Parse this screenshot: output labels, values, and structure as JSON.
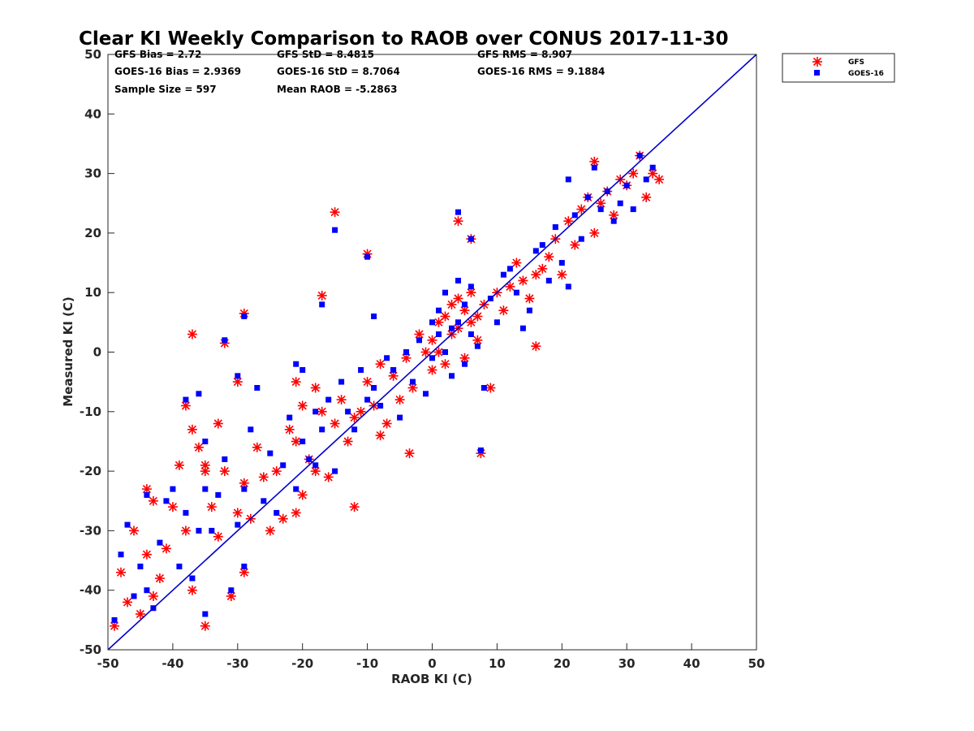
{
  "chart_data": {
    "type": "scatter",
    "title": "Clear KI Weekly Comparison to RAOB over CONUS 2017-11-30",
    "xlabel": "RAOB KI (C)",
    "ylabel": "Measured KI (C)",
    "xlim": [
      -50,
      50
    ],
    "ylim": [
      -50,
      50
    ],
    "xticks": [
      "-50",
      "-40",
      "-30",
      "-20",
      "-10",
      "0",
      "10",
      "20",
      "30",
      "40",
      "50"
    ],
    "yticks": [
      "-50",
      "-40",
      "-30",
      "-20",
      "-10",
      "0",
      "10",
      "20",
      "30",
      "40",
      "50"
    ],
    "grid": false,
    "legend_position": "outside top-right",
    "reference_line": {
      "name": "1:1 line",
      "color": "#0000cc",
      "x": [
        -50,
        50
      ],
      "y": [
        -50,
        50
      ]
    },
    "stats": [
      "GFS Bias = 2.72",
      "GFS StD = 8.4815",
      "GFS RMS = 8.907",
      "GOES-16 Bias = 2.9369",
      "GOES-16 StD = 8.7064",
      "GOES-16 RMS = 9.1884",
      "Sample Size = 597",
      "Mean RAOB = -5.2863"
    ],
    "series": [
      {
        "name": "GFS",
        "marker": "asterisk",
        "color": "#ff0000",
        "x": [
          -49,
          -48,
          -47,
          -46,
          -45,
          -44,
          -44,
          -43,
          -43,
          -42,
          -41,
          -40,
          -39,
          -38,
          -38,
          -37,
          -37,
          -36,
          -35,
          -35,
          -34,
          -33,
          -33,
          -32,
          -31,
          -30,
          -30,
          -29,
          -29,
          -28,
          -27,
          -26,
          -25,
          -24,
          -23,
          -22,
          -21,
          -21,
          -20,
          -20,
          -19,
          -18,
          -17,
          -16,
          -15,
          -14,
          -13,
          -12,
          -11,
          -10,
          -9,
          -8,
          -7,
          -6,
          -5,
          -4,
          -3,
          -2,
          -1,
          0,
          0,
          1,
          1,
          2,
          2,
          3,
          3,
          4,
          4,
          5,
          5,
          6,
          6,
          7,
          7,
          8,
          9,
          10,
          11,
          12,
          13,
          14,
          15,
          16,
          17,
          18,
          19,
          20,
          21,
          22,
          23,
          24,
          25,
          25,
          26,
          27,
          28,
          29,
          30,
          31,
          32,
          33,
          34,
          35,
          -15,
          -10,
          -32,
          -29,
          -17,
          7.5,
          -3.5,
          4,
          6,
          -37,
          -35,
          -21,
          -18,
          -12,
          -8,
          16
        ],
        "y": [
          -46,
          -37,
          -42,
          -30,
          -44,
          -34,
          -23,
          -41,
          -25,
          -38,
          -33,
          -26,
          -19,
          -30,
          -9,
          -40,
          -13,
          -16,
          -46,
          -20,
          -26,
          -31,
          -12,
          -20,
          -41,
          -27,
          -5,
          -37,
          -22,
          -28,
          -16,
          -21,
          -30,
          -20,
          -28,
          -13,
          -27,
          -5,
          -24,
          -9,
          -18,
          -6,
          -10,
          -21,
          -12,
          -8,
          -15,
          -11,
          -10,
          -5,
          -9,
          -2,
          -12,
          -4,
          -8,
          -1,
          -6,
          3,
          0,
          2,
          -3,
          5,
          0,
          6,
          -2,
          8,
          3,
          4,
          9,
          7,
          -1,
          5,
          10,
          6,
          2,
          8,
          -6,
          10,
          7,
          11,
          15,
          12,
          9,
          1,
          14,
          16,
          19,
          13,
          22,
          18,
          24,
          26,
          20,
          32,
          25,
          27,
          23,
          29,
          28,
          30,
          33,
          26,
          30,
          29,
          23.5,
          16.5,
          1.5,
          6.5,
          9.5,
          -17,
          -17,
          22,
          19,
          3,
          -19,
          -15,
          -20,
          -26,
          -14,
          13
        ]
      },
      {
        "name": "GOES-16",
        "marker": "square",
        "color": "#0000ff",
        "x": [
          -49,
          -48,
          -47,
          -46,
          -45,
          -44,
          -44,
          -43,
          -42,
          -41,
          -40,
          -39,
          -38,
          -38,
          -37,
          -36,
          -35,
          -35,
          -34,
          -33,
          -32,
          -31,
          -30,
          -30,
          -29,
          -29,
          -28,
          -27,
          -26,
          -25,
          -24,
          -23,
          -22,
          -21,
          -20,
          -20,
          -19,
          -18,
          -17,
          -16,
          -15,
          -14,
          -13,
          -12,
          -11,
          -10,
          -9,
          -8,
          -7,
          -6,
          -5,
          -4,
          -3,
          -2,
          -1,
          0,
          0,
          1,
          1,
          2,
          2,
          3,
          3,
          4,
          4,
          5,
          5,
          6,
          6,
          7,
          8,
          9,
          10,
          11,
          12,
          13,
          14,
          15,
          16,
          17,
          18,
          19,
          20,
          21,
          22,
          23,
          24,
          25,
          26,
          27,
          28,
          29,
          30,
          31,
          32,
          33,
          34,
          -15,
          -10,
          -32,
          -29,
          -17,
          7.5,
          4,
          6,
          -35,
          -36,
          -21,
          -18,
          -9,
          -6,
          21
        ],
        "y": [
          -45,
          -34,
          -29,
          -41,
          -36,
          -24,
          -40,
          -43,
          -32,
          -25,
          -23,
          -36,
          -27,
          -8,
          -38,
          -30,
          -44,
          -15,
          -30,
          -24,
          -18,
          -40,
          -29,
          -4,
          -23,
          -36,
          -13,
          -6,
          -25,
          -17,
          -27,
          -19,
          -11,
          -23,
          -3,
          -15,
          -18,
          -10,
          -13,
          -8,
          -20,
          -5,
          -10,
          -13,
          -3,
          -8,
          -6,
          -9,
          -1,
          -3,
          -11,
          0,
          -5,
          2,
          -7,
          5,
          -1,
          3,
          7,
          0,
          10,
          4,
          -4,
          5,
          12,
          -2,
          8,
          3,
          11,
          1,
          -6,
          9,
          5,
          13,
          14,
          10,
          4,
          7,
          17,
          18,
          12,
          21,
          15,
          11,
          23,
          19,
          26,
          31,
          24,
          27,
          22,
          25,
          28,
          24,
          33,
          29,
          31,
          20.5,
          16,
          2,
          6,
          8,
          -16.5,
          23.5,
          19,
          -23,
          -7,
          -2,
          -19,
          6,
          -3,
          29
        ]
      }
    ]
  }
}
